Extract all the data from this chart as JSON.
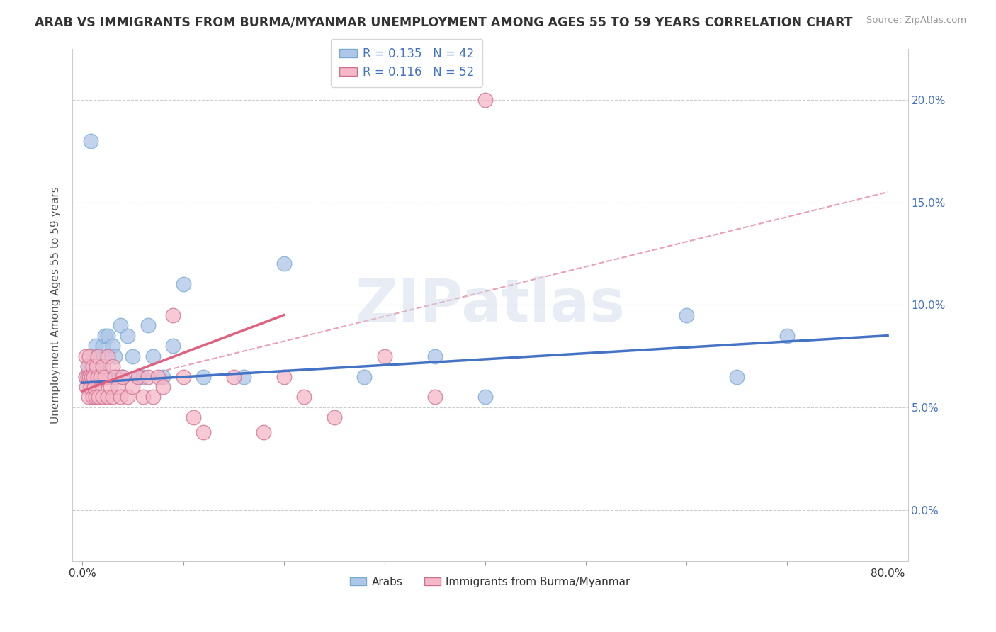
{
  "title": "ARAB VS IMMIGRANTS FROM BURMA/MYANMAR UNEMPLOYMENT AMONG AGES 55 TO 59 YEARS CORRELATION CHART",
  "source": "Source: ZipAtlas.com",
  "ylabel": "Unemployment Among Ages 55 to 59 years",
  "legend_label1": "R = 0.135   N = 42",
  "legend_label2": "R = 0.116   N = 52",
  "legend_color1": "#aec6e8",
  "legend_color2": "#f4b8c8",
  "line_color1": "#4472c4",
  "line_color2": "#e06080",
  "dashed_color": "#e06080",
  "watermark": "ZIPatlas",
  "xlim_min": -0.01,
  "xlim_max": 0.82,
  "ylim_min": -0.025,
  "ylim_max": 0.225,
  "arab_x": [
    0.003,
    0.005,
    0.006,
    0.007,
    0.008,
    0.009,
    0.01,
    0.01,
    0.012,
    0.013,
    0.015,
    0.015,
    0.018,
    0.02,
    0.02,
    0.022,
    0.025,
    0.025,
    0.028,
    0.03,
    0.032,
    0.035,
    0.038,
    0.04,
    0.045,
    0.05,
    0.055,
    0.06,
    0.065,
    0.07,
    0.08,
    0.09,
    0.1,
    0.12,
    0.16,
    0.2,
    0.28,
    0.35,
    0.4,
    0.6,
    0.65,
    0.7
  ],
  "arab_y": [
    0.065,
    0.07,
    0.065,
    0.06,
    0.18,
    0.07,
    0.065,
    0.075,
    0.065,
    0.08,
    0.07,
    0.075,
    0.065,
    0.065,
    0.08,
    0.085,
    0.075,
    0.085,
    0.065,
    0.08,
    0.075,
    0.065,
    0.09,
    0.065,
    0.085,
    0.075,
    0.065,
    0.065,
    0.09,
    0.075,
    0.065,
    0.08,
    0.11,
    0.065,
    0.065,
    0.12,
    0.065,
    0.075,
    0.055,
    0.095,
    0.065,
    0.085
  ],
  "burma_x": [
    0.003,
    0.003,
    0.004,
    0.005,
    0.005,
    0.006,
    0.007,
    0.007,
    0.008,
    0.009,
    0.01,
    0.01,
    0.011,
    0.012,
    0.013,
    0.014,
    0.015,
    0.015,
    0.016,
    0.018,
    0.02,
    0.02,
    0.022,
    0.025,
    0.025,
    0.028,
    0.03,
    0.03,
    0.032,
    0.035,
    0.038,
    0.04,
    0.045,
    0.05,
    0.055,
    0.06,
    0.065,
    0.07,
    0.075,
    0.08,
    0.09,
    0.1,
    0.11,
    0.12,
    0.15,
    0.18,
    0.2,
    0.22,
    0.25,
    0.3,
    0.35,
    0.4
  ],
  "burma_y": [
    0.065,
    0.075,
    0.06,
    0.065,
    0.07,
    0.055,
    0.065,
    0.075,
    0.06,
    0.065,
    0.055,
    0.07,
    0.065,
    0.06,
    0.055,
    0.07,
    0.065,
    0.075,
    0.055,
    0.065,
    0.055,
    0.07,
    0.065,
    0.055,
    0.075,
    0.06,
    0.055,
    0.07,
    0.065,
    0.06,
    0.055,
    0.065,
    0.055,
    0.06,
    0.065,
    0.055,
    0.065,
    0.055,
    0.065,
    0.06,
    0.095,
    0.065,
    0.045,
    0.038,
    0.065,
    0.038,
    0.065,
    0.055,
    0.045,
    0.075,
    0.055,
    0.2
  ],
  "arab_line_x0": 0.0,
  "arab_line_x1": 0.8,
  "arab_line_y0": 0.062,
  "arab_line_y1": 0.085,
  "burma_line_x0": 0.0,
  "burma_line_x1": 0.2,
  "burma_line_y0": 0.058,
  "burma_line_y1": 0.095,
  "dash_line_x0": 0.0,
  "dash_line_x1": 0.8,
  "dash_line_y0": 0.058,
  "dash_line_y1": 0.155
}
